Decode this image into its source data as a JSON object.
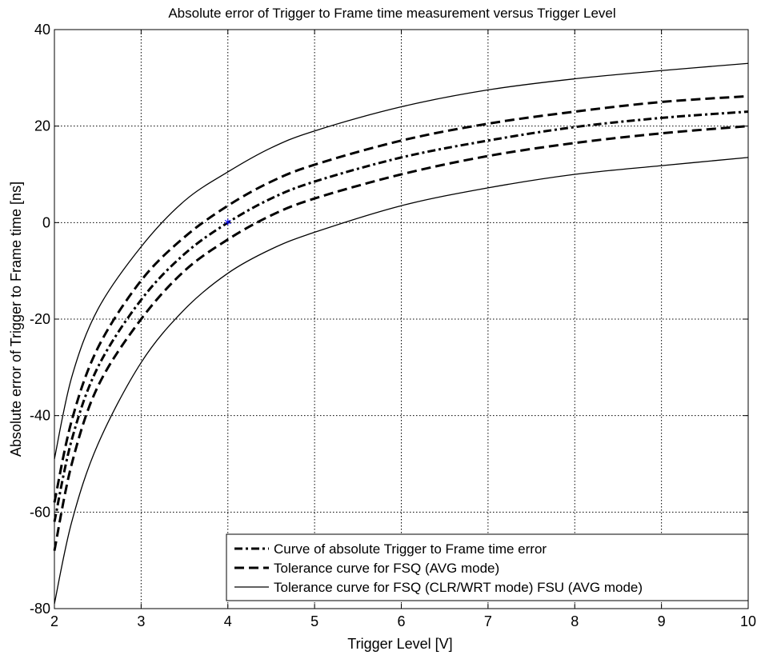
{
  "chart_data": {
    "type": "line",
    "title": "Absolute error of Trigger to Frame time measurement versus Trigger Level",
    "xlabel": "Trigger Level [V]",
    "ylabel": "Absolute error of Trigger to Frame time [ns]",
    "xlim": [
      2,
      10
    ],
    "ylim": [
      -80,
      40
    ],
    "x_ticks": [
      2,
      3,
      4,
      5,
      6,
      7,
      8,
      9,
      10
    ],
    "y_ticks": [
      -80,
      -60,
      -40,
      -20,
      0,
      20,
      40
    ],
    "grid": true,
    "legend_position": "bottom-right",
    "series": [
      {
        "name": "Curve of absolute Trigger to Frame time error",
        "style": "dashdot",
        "x": [
          2,
          2.2,
          2.5,
          3,
          3.5,
          4,
          4.5,
          5,
          6,
          7,
          8,
          9,
          10
        ],
        "y": [
          -62,
          -45,
          -30,
          -16,
          -6.5,
          0,
          5,
          8.5,
          13.5,
          17,
          19.8,
          21.7,
          23
        ]
      },
      {
        "name": "Tolerance curve for FSQ (AVG mode)",
        "style": "dashed",
        "x": [
          2,
          2.2,
          2.5,
          3,
          3.5,
          4,
          4.5,
          5,
          6,
          7,
          8,
          9,
          10
        ],
        "y": [
          -58,
          -41,
          -26,
          -12,
          -3,
          3.5,
          8.5,
          12,
          17,
          20.5,
          23,
          25,
          26.2
        ]
      },
      {
        "name": "",
        "style": "dashed",
        "x": [
          2,
          2.2,
          2.5,
          3,
          3.5,
          4,
          4.5,
          5,
          6,
          7,
          8,
          9,
          10
        ],
        "y": [
          -68,
          -50,
          -34,
          -20,
          -10,
          -3.5,
          1.5,
          5,
          10,
          13.8,
          16.5,
          18.5,
          20
        ]
      },
      {
        "name": "Tolerance curve for FSQ (CLR/WRT mode) FSU (AVG mode)",
        "style": "solid",
        "x": [
          2,
          2.2,
          2.5,
          3,
          3.5,
          4,
          4.5,
          5,
          6,
          7,
          8,
          9,
          10
        ],
        "y": [
          -49,
          -32,
          -18,
          -5,
          4.5,
          10.5,
          15.5,
          19,
          24,
          27.5,
          29.8,
          31.5,
          33
        ]
      },
      {
        "name": "",
        "style": "solid",
        "x": [
          2,
          2.2,
          2.5,
          3,
          3.5,
          4,
          4.5,
          5,
          6,
          7,
          8,
          9,
          10
        ],
        "y": [
          -79,
          -62,
          -46,
          -29,
          -18,
          -10.5,
          -5.5,
          -2,
          3.5,
          7.2,
          10,
          11.8,
          13.5
        ]
      }
    ],
    "marker": {
      "x": 4,
      "y": 0,
      "symbol": "*",
      "color": "#0000ff"
    }
  }
}
